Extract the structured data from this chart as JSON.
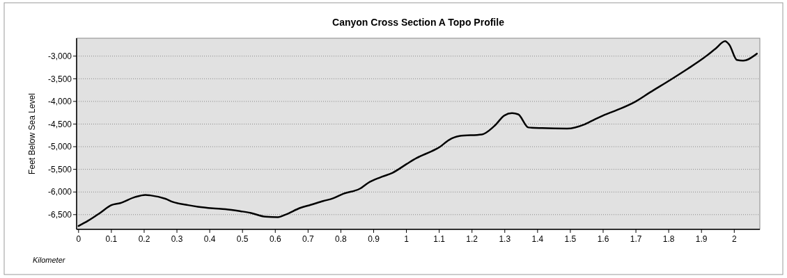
{
  "chart_data": {
    "type": "line",
    "title": "Canyon Cross Section A Topo Profile",
    "xlabel": "Kilometer",
    "ylabel": "Feet Below Sea Level",
    "x": [
      0,
      0.028,
      0.066,
      0.1,
      0.127,
      0.173,
      0.204,
      0.219,
      0.265,
      0.288,
      0.334,
      0.364,
      0.41,
      0.448,
      0.494,
      0.524,
      0.57,
      0.608,
      0.631,
      0.677,
      0.708,
      0.746,
      0.776,
      0.807,
      0.86,
      0.883,
      0.921,
      0.958,
      1.0,
      1.031,
      1.077,
      1.1,
      1.13,
      1.161,
      1.23,
      1.268,
      1.299,
      1.322,
      1.341,
      1.372,
      1.414,
      1.49,
      1.544,
      1.575,
      1.605,
      1.651,
      1.697,
      1.743,
      1.805,
      1.858,
      1.904,
      1.943,
      1.972,
      1.985,
      2.008,
      2.027,
      2.069
    ],
    "series": [
      {
        "color": "#000000",
        "values": [
          -6750,
          -6640,
          -6460,
          -6290,
          -6245,
          -6110,
          -6065,
          -6075,
          -6150,
          -6220,
          -6290,
          -6325,
          -6360,
          -6380,
          -6425,
          -6460,
          -6545,
          -6555,
          -6500,
          -6350,
          -6285,
          -6200,
          -6140,
          -6040,
          -5920,
          -5800,
          -5675,
          -5575,
          -5385,
          -5250,
          -5100,
          -5015,
          -4850,
          -4765,
          -4730,
          -4545,
          -4310,
          -4260,
          -4285,
          -4575,
          -4590,
          -4600,
          -4505,
          -4395,
          -4295,
          -4165,
          -4010,
          -3800,
          -3525,
          -3280,
          -3055,
          -2835,
          -2670,
          -2750,
          -3085,
          -3100,
          -2945
        ]
      }
    ],
    "xlim": [
      -0.006,
      2.078
    ],
    "ylim": [
      -6825,
      -2605
    ],
    "xticks": [
      0,
      0.1,
      0.2,
      0.3,
      0.4,
      0.5,
      0.6,
      0.7,
      0.8,
      0.9,
      1,
      1.1,
      1.2,
      1.3,
      1.4,
      1.5,
      1.6,
      1.7,
      1.8,
      1.9,
      2
    ],
    "yticks": [
      {
        "value": -6500,
        "label": "-6,500"
      },
      {
        "value": -6000,
        "label": "-6,000"
      },
      {
        "value": -5500,
        "label": "-5,500"
      },
      {
        "value": -5000,
        "label": "-5,000"
      },
      {
        "value": -4500,
        "label": "-4,500"
      },
      {
        "value": -4000,
        "label": "-4,000"
      },
      {
        "value": -3500,
        "label": "-3,500"
      },
      {
        "value": -3000,
        "label": "-3,000"
      }
    ],
    "grid": "y",
    "marker": "none",
    "line_style": "solid"
  }
}
